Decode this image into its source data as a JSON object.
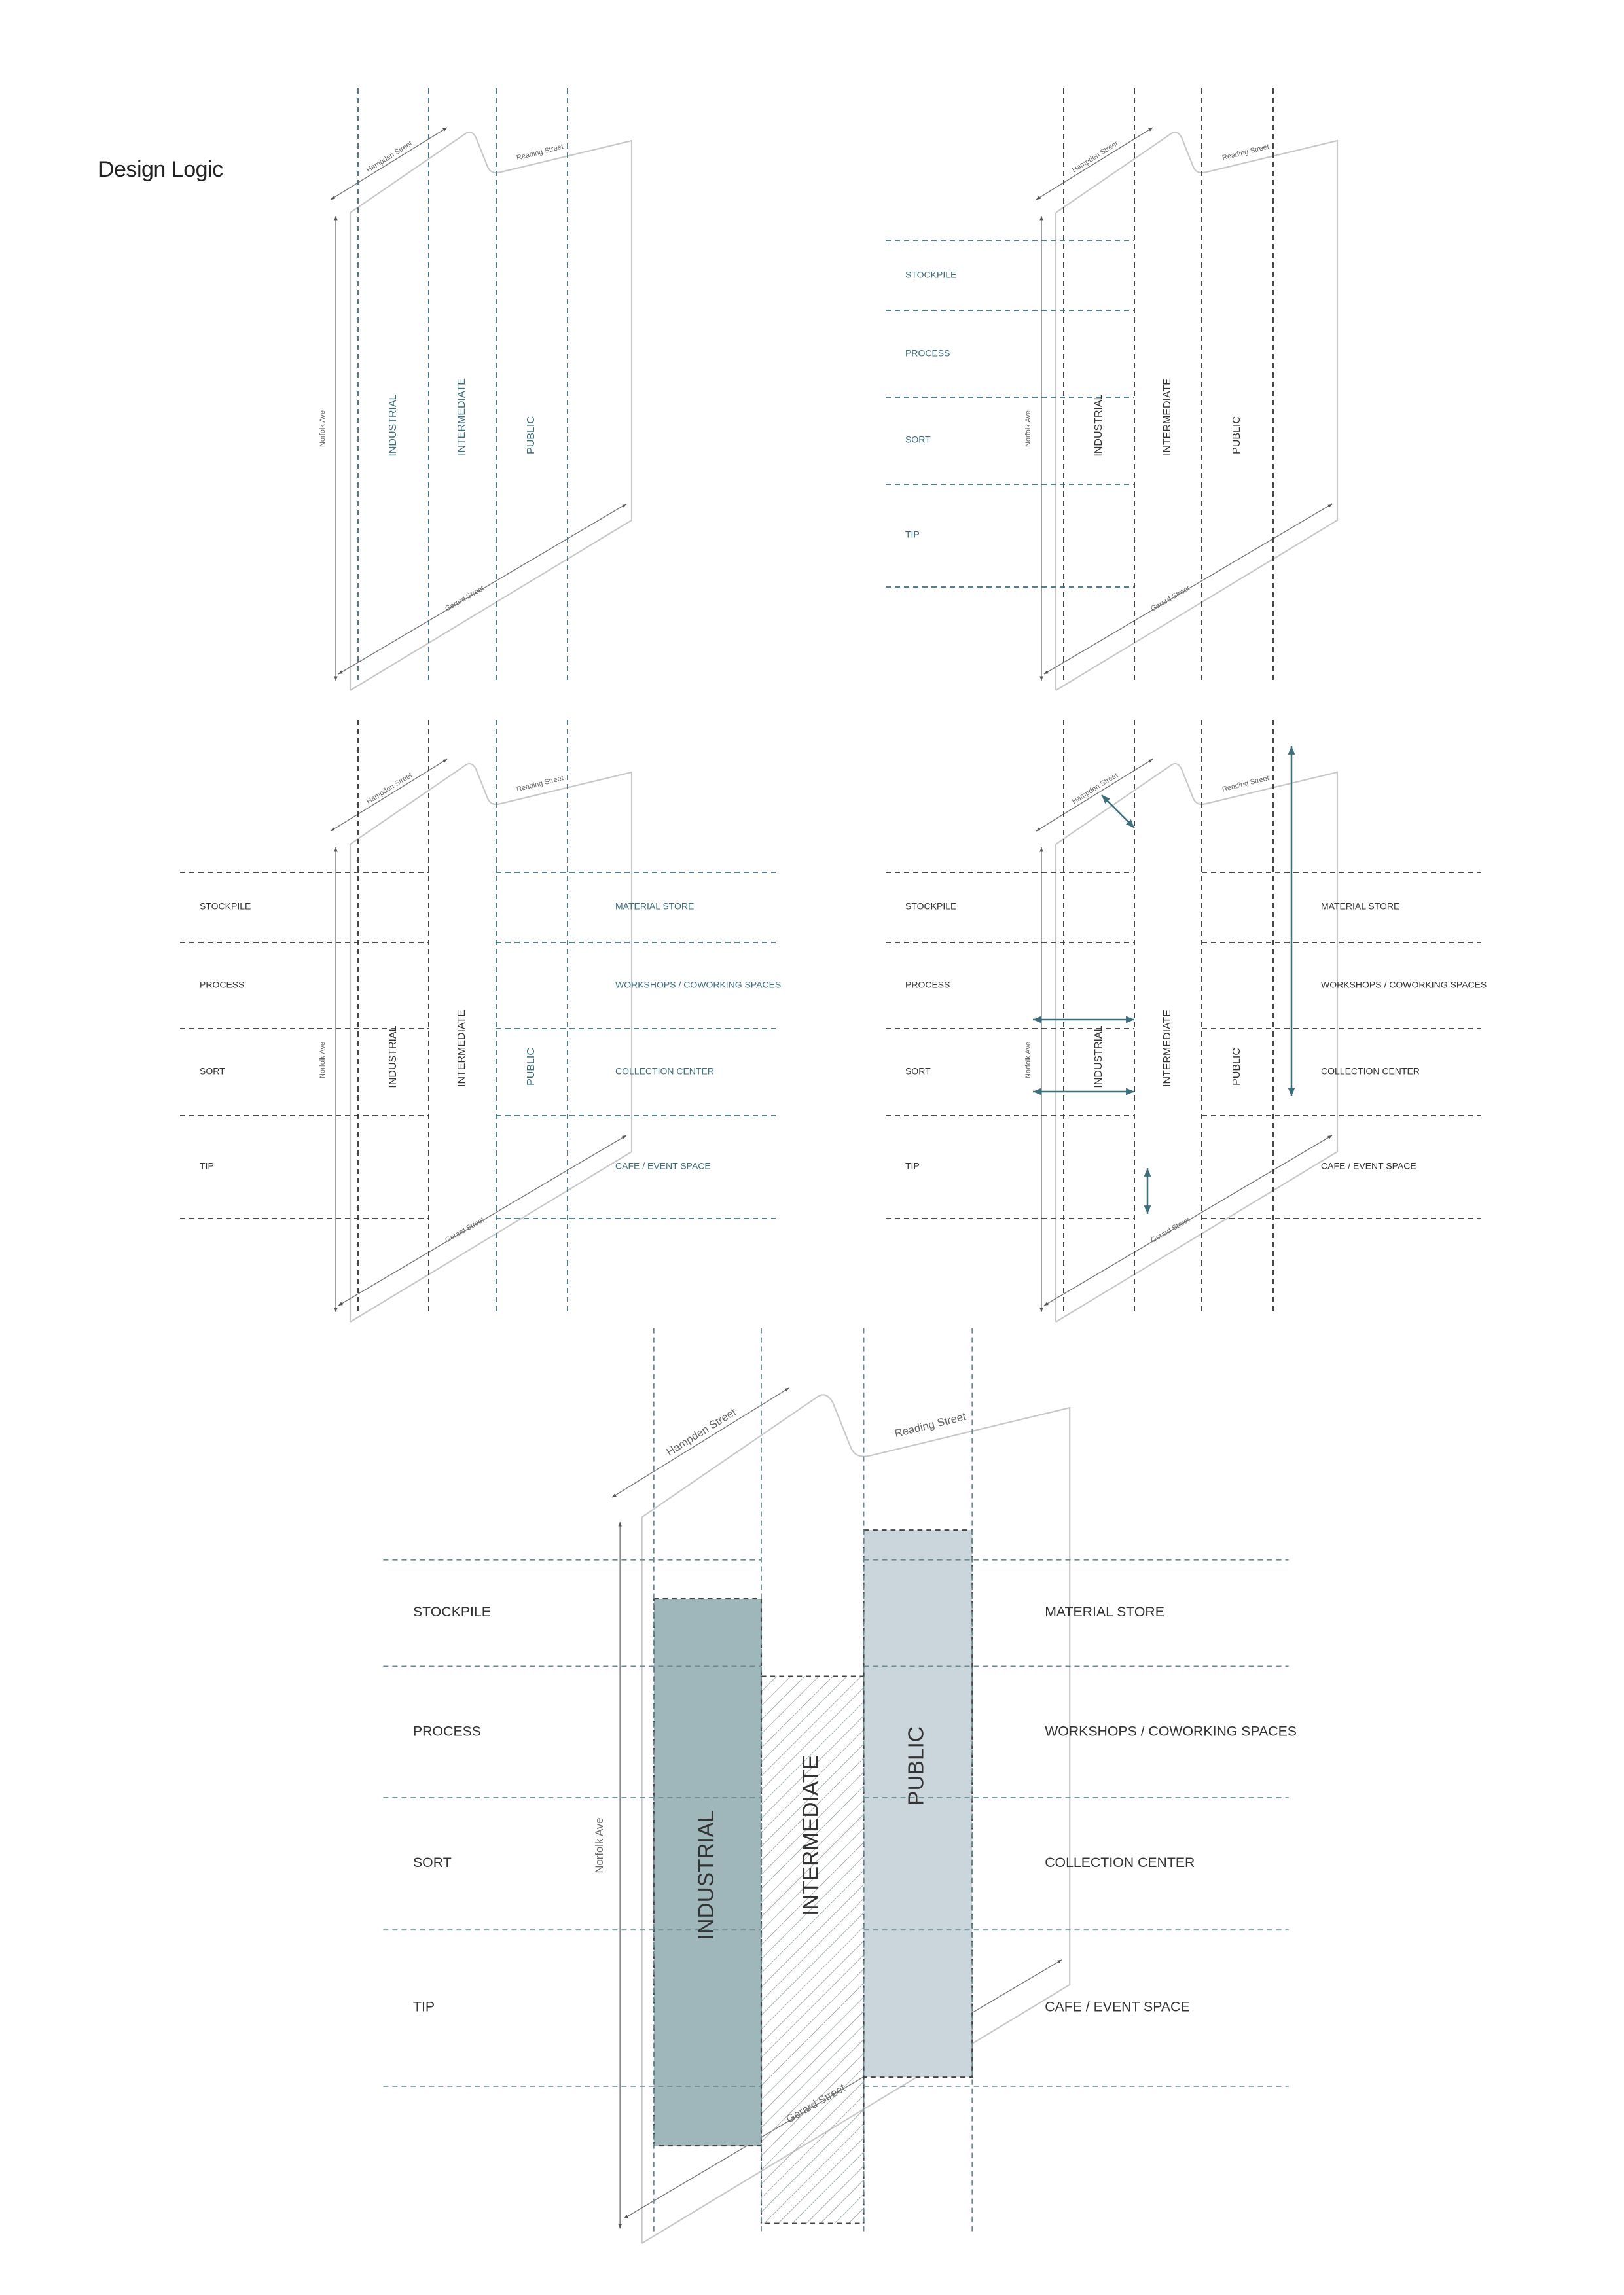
{
  "page": {
    "title": "Design Logic"
  },
  "colors": {
    "teal": "#3d6e7c",
    "dark": "#333333",
    "street": "#c8c8c8",
    "industrial_fill": "#9fb6ba",
    "public_fill": "#cbd6dc",
    "hatch": "#9aa7ab"
  },
  "streets": {
    "hampden": "Hampden Street",
    "reading": "Reading Street",
    "norfolk": "Norfolk Ave",
    "gerard": "Gerard Street"
  },
  "zones": {
    "industrial": "INDUSTRIAL",
    "intermediate": "INTERMEDIATE",
    "public": "PUBLIC"
  },
  "left_rows": [
    "STOCKPILE",
    "PROCESS",
    "SORT",
    "TIP"
  ],
  "right_rows": [
    "MATERIAL STORE",
    "WORKSHOPS / COWORKING SPACES",
    "COLLECTION CENTER",
    "CAFE / EVENT SPACE"
  ],
  "panels": [
    {
      "id": "zoning",
      "zone_label_color": "teal",
      "has_left_rows": false,
      "has_right_rows": false,
      "has_arrows": false,
      "filled": false
    },
    {
      "id": "industrial-program",
      "zone_label_color": "dark",
      "has_left_rows": true,
      "left_color": "teal",
      "has_right_rows": false,
      "has_arrows": false,
      "filled": false
    },
    {
      "id": "public-program",
      "zone_label_color": "mixed",
      "has_left_rows": true,
      "left_color": "dark",
      "has_right_rows": true,
      "right_color": "teal",
      "has_arrows": false,
      "filled": false
    },
    {
      "id": "circulation",
      "zone_label_color": "dark",
      "has_left_rows": true,
      "left_color": "dark",
      "has_right_rows": true,
      "right_color": "dark",
      "has_arrows": true,
      "filled": false
    },
    {
      "id": "massing",
      "zone_label_color": "dark",
      "has_left_rows": true,
      "left_color": "dark",
      "has_right_rows": true,
      "right_color": "dark",
      "has_arrows": false,
      "filled": true
    }
  ]
}
